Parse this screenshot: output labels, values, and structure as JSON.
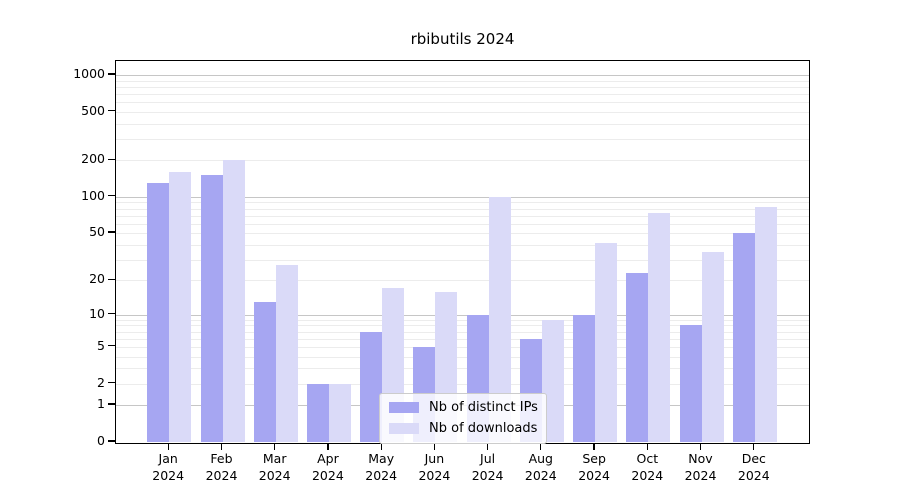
{
  "chart_data": {
    "type": "bar",
    "title": "rbibutils 2024",
    "categories": [
      "Jan",
      "Feb",
      "Mar",
      "Apr",
      "May",
      "Jun",
      "Jul",
      "Aug",
      "Sep",
      "Oct",
      "Nov",
      "Dec"
    ],
    "year_label": "2024",
    "series": [
      {
        "name": "Nb of distinct IPs",
        "color": "#a6a6f2",
        "values": [
          130,
          150,
          13,
          2,
          7,
          5,
          10,
          6,
          10,
          23,
          8,
          50
        ]
      },
      {
        "name": "Nb of downloads",
        "color": "#dadaf8",
        "values": [
          160,
          200,
          27,
          2,
          17,
          16,
          100,
          9,
          41,
          73,
          35,
          83
        ]
      }
    ],
    "yscale": "log1p",
    "yticks": [
      0,
      1,
      2,
      5,
      10,
      20,
      50,
      100,
      200,
      500,
      1000
    ],
    "ylim": [
      0,
      1300
    ],
    "xlabel": "",
    "ylabel": "",
    "grid": "horizontal log minor+major",
    "grid_major_color": "#c6c6c6",
    "grid_minor_color": "#ececec",
    "legend_position": "lower center"
  }
}
